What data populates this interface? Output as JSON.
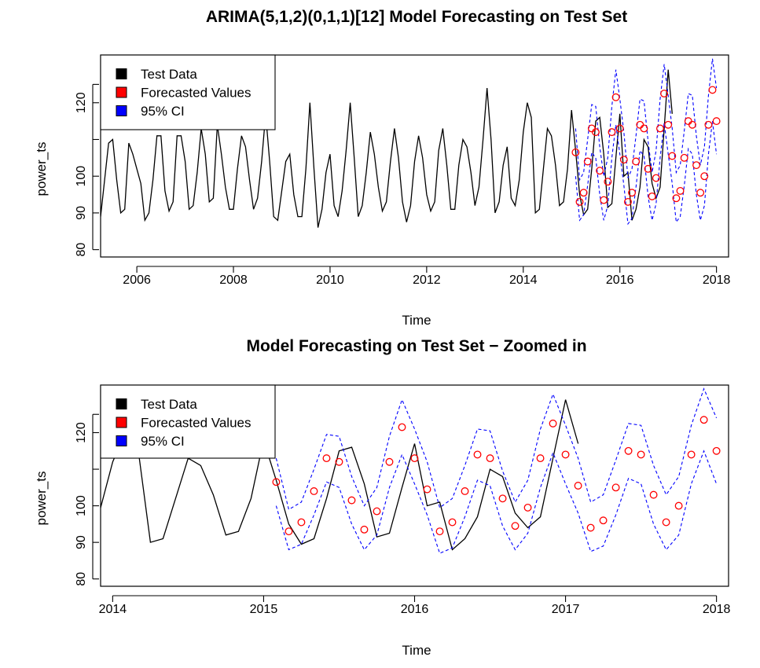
{
  "chart_data": [
    {
      "type": "line",
      "title": "ARIMA(5,1,2)(0,1,1)[12] Model Forecasting on Test Set",
      "xlabel": "Time",
      "ylabel": "power_ts",
      "xlim": [
        2005.25,
        2018.25
      ],
      "ylim": [
        78,
        133
      ],
      "x_ticks": [
        2006,
        2008,
        2010,
        2012,
        2014,
        2016,
        2018
      ],
      "x_tick_labels": [
        "2006",
        "2008",
        "2010",
        "2012",
        "2014",
        "2016",
        "2018"
      ],
      "y_ticks": [
        80,
        90,
        100,
        120
      ],
      "y_tick_labels": [
        "80",
        "90",
        "100",
        "120"
      ],
      "legend_position": "top-left",
      "legend": [
        {
          "label": "Test Data",
          "color": "#000000"
        },
        {
          "label": "Forecasted Values",
          "color": "#ff0000"
        },
        {
          "label": "95% CI",
          "color": "#0000ff"
        }
      ]
    },
    {
      "type": "line",
      "title": "Model Forecasting on Test Set − Zoomed in",
      "xlabel": "Time",
      "ylabel": "power_ts",
      "xlim": [
        2013.92,
        2018.08
      ],
      "ylim": [
        78,
        133
      ],
      "x_ticks": [
        2014,
        2015,
        2016,
        2017,
        2018
      ],
      "x_tick_labels": [
        "2014",
        "2015",
        "2016",
        "2017",
        "2018"
      ],
      "y_ticks": [
        80,
        90,
        100,
        120
      ],
      "y_tick_labels": [
        "80",
        "90",
        "100",
        "120"
      ],
      "legend_position": "top-left",
      "legend": [
        {
          "label": "Test Data",
          "color": "#000000"
        },
        {
          "label": "Forecasted Values",
          "color": "#ff0000"
        },
        {
          "label": "95% CI",
          "color": "#0000ff"
        }
      ]
    }
  ],
  "series": {
    "actual": {
      "start": 2005.25,
      "step": 0.08333333,
      "values": [
        89,
        99,
        109,
        110,
        99,
        90,
        91,
        109,
        106,
        102,
        98,
        88,
        90,
        99,
        111,
        111,
        96,
        90.5,
        93,
        111,
        111,
        104,
        91,
        92,
        101,
        113,
        106,
        93,
        94,
        114,
        106,
        97,
        91,
        91,
        102,
        111,
        108,
        99,
        91,
        94,
        104,
        117,
        104,
        89,
        88,
        96,
        104,
        106,
        95,
        89,
        89,
        102,
        120,
        102,
        86,
        91,
        101,
        106,
        92,
        89,
        96,
        107,
        120,
        105,
        89,
        92,
        101,
        112,
        106,
        97,
        90.5,
        93,
        104,
        113,
        105,
        93,
        87.5,
        92,
        104,
        111,
        105,
        95,
        90.5,
        93,
        107,
        113,
        103,
        91,
        91,
        103,
        110,
        108,
        101,
        92,
        97,
        110,
        124,
        110,
        90,
        93,
        103,
        108,
        94,
        92,
        99,
        112,
        120,
        116,
        90,
        91,
        102,
        113,
        111,
        103,
        92,
        93,
        102,
        118,
        107,
        95,
        89.5,
        91,
        102,
        115,
        116,
        106,
        91.5,
        92.5,
        105,
        117,
        100,
        101,
        88,
        91,
        97,
        110,
        108,
        98,
        94,
        97,
        113,
        129,
        117
      ]
    },
    "forecast": {
      "start": 2015.083333,
      "step": 0.08333333,
      "values": [
        106.5,
        93,
        95.5,
        104,
        113,
        112,
        101.5,
        93.5,
        98.5,
        112,
        121.5,
        113,
        104.5,
        93,
        95.5,
        104,
        114,
        113,
        102,
        94.5,
        99.5,
        113,
        122.5,
        114,
        105.5,
        94,
        96,
        105,
        115,
        114,
        103,
        95.5,
        100,
        114,
        123.5,
        115
      ]
    },
    "ci_upper": {
      "start": 2015.083333,
      "step": 0.08333333,
      "values": [
        113,
        99,
        101,
        110,
        119.5,
        119,
        108,
        100,
        105,
        119,
        129,
        121,
        112,
        99.5,
        102,
        111,
        121,
        120.5,
        109.5,
        101,
        107,
        121,
        130.5,
        122,
        113,
        101,
        103,
        112.5,
        122.5,
        122,
        111,
        103,
        108,
        122,
        132,
        124
      ]
    },
    "ci_lower": {
      "start": 2015.083333,
      "step": 0.08333333,
      "values": [
        100,
        88,
        89.5,
        97.5,
        106.5,
        105,
        95,
        88,
        92,
        105,
        114,
        106,
        97.5,
        87,
        88.5,
        97,
        107,
        105.5,
        94.5,
        88,
        92.5,
        105,
        114.5,
        106,
        98,
        87.5,
        89,
        97.5,
        107.5,
        106,
        95,
        88,
        92,
        106,
        115,
        106
      ]
    }
  }
}
